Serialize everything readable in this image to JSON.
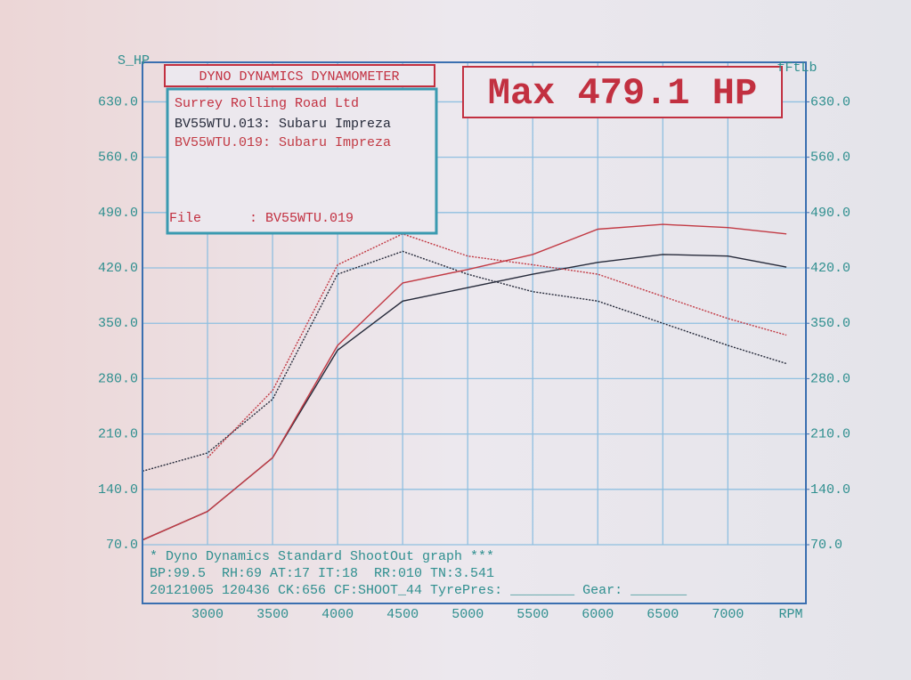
{
  "chart_data": {
    "type": "line",
    "header": "DYNO DYNAMICS DYNAMOMETER",
    "max_label": "Max 479.1 HP",
    "company": "Surrey Rolling Road Ltd",
    "file_label": "File      : BV55WTU.019",
    "y_label": "S_HP",
    "y2_label": "fFtLb",
    "x_label": "RPM",
    "footer": [
      "* Dyno Dynamics Standard ShootOut graph ***",
      "BP:99.5  RH:69 AT:17 IT:18  RR:010 TN:3.541",
      "20121005 120436 CK:656 CF:SHOOT_44 TyrePres: ________ Gear: _______"
    ],
    "x": [
      2500,
      3000,
      3500,
      4000,
      4500,
      5000,
      5500,
      6000,
      6500,
      7000,
      7450
    ],
    "xlim": [
      2500,
      7600
    ],
    "xticks": [
      3000,
      3500,
      4000,
      4500,
      5000,
      5500,
      6000,
      6500,
      7000
    ],
    "ylim": [
      70,
      680
    ],
    "yticks": [
      {
        "value": 70,
        "label": "70.0"
      },
      {
        "value": 140,
        "label": "140.0"
      },
      {
        "value": 210,
        "label": "210.0"
      },
      {
        "value": 280,
        "label": "280.0"
      },
      {
        "value": 350,
        "label": "350.0"
      },
      {
        "value": 420,
        "label": "420.0"
      },
      {
        "value": 490,
        "label": "490.0"
      },
      {
        "value": 560,
        "label": "560.0"
      },
      {
        "value": 630,
        "label": "630.0"
      }
    ],
    "y2lim": [
      70,
      680
    ],
    "y2ticks": [
      {
        "value": 70,
        "label": "70.0"
      },
      {
        "value": 140,
        "label": "140.0"
      },
      {
        "value": 210,
        "label": "210.0"
      },
      {
        "value": 280,
        "label": "280.0"
      },
      {
        "value": 350,
        "label": "350.0"
      },
      {
        "value": 420,
        "label": "420.0"
      },
      {
        "value": 490,
        "label": "490.0"
      },
      {
        "value": 560,
        "label": "560.0"
      },
      {
        "value": 630,
        "label": "630.0"
      }
    ],
    "grid": true,
    "series": [
      {
        "name": "BV55WTU.013: Subaru Impreza",
        "color": "#262a3a",
        "values": [
          76,
          112,
          180,
          316,
          378,
          395,
          412,
          427,
          437,
          435,
          421
        ],
        "y2_values": [
          163,
          186,
          254,
          412,
          441,
          412,
          390,
          378,
          350,
          322,
          299
        ]
      },
      {
        "name": "BV55WTU.019: Subaru Impreza",
        "color": "#c23a44",
        "values": [
          76,
          112,
          180,
          322,
          401,
          418,
          437,
          469,
          475,
          471,
          463
        ],
        "y2_values": [
          null,
          180,
          265,
          424,
          463,
          435,
          424,
          412,
          384,
          356,
          335
        ]
      }
    ]
  }
}
